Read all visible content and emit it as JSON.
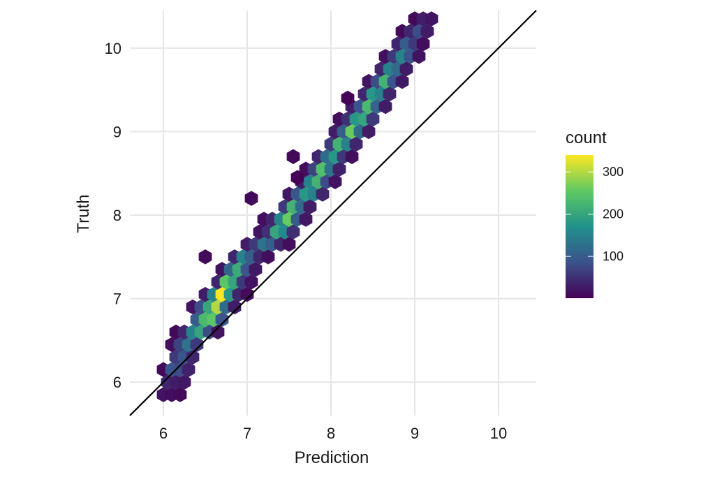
{
  "chart_data": {
    "type": "hexbin",
    "xlabel": "Prediction",
    "ylabel": "Truth",
    "xlim": [
      5.6,
      10.45
    ],
    "ylim": [
      5.6,
      10.45
    ],
    "x_ticks": [
      6,
      7,
      8,
      9,
      10
    ],
    "y_ticks": [
      6,
      7,
      8,
      9,
      10
    ],
    "grid": true,
    "reference_line": {
      "slope": 1,
      "intercept": 0,
      "color": "#000000"
    },
    "legend": {
      "title": "count",
      "placement": "right",
      "ticks": [
        100,
        200,
        300
      ],
      "range": [
        1,
        340
      ],
      "colormap": "viridis",
      "colors": [
        "#440154",
        "#3b528b",
        "#21918c",
        "#5ec962",
        "#fde725"
      ]
    },
    "bins": [
      [
        6.0,
        5.85,
        20
      ],
      [
        6.1,
        5.85,
        15
      ],
      [
        6.2,
        5.85,
        10
      ],
      [
        6.05,
        6.0,
        40
      ],
      [
        6.15,
        6.0,
        30
      ],
      [
        6.25,
        6.0,
        25
      ],
      [
        6.0,
        6.15,
        10
      ],
      [
        6.1,
        6.15,
        90
      ],
      [
        6.2,
        6.15,
        80
      ],
      [
        6.3,
        6.15,
        35
      ],
      [
        6.15,
        6.3,
        60
      ],
      [
        6.25,
        6.3,
        90
      ],
      [
        6.35,
        6.3,
        40
      ],
      [
        6.1,
        6.45,
        15
      ],
      [
        6.2,
        6.45,
        70
      ],
      [
        6.3,
        6.45,
        130
      ],
      [
        6.4,
        6.45,
        60
      ],
      [
        6.15,
        6.6,
        10
      ],
      [
        6.25,
        6.6,
        40
      ],
      [
        6.35,
        6.6,
        150
      ],
      [
        6.45,
        6.6,
        200
      ],
      [
        6.55,
        6.6,
        80
      ],
      [
        6.65,
        6.6,
        20
      ],
      [
        6.4,
        6.75,
        100
      ],
      [
        6.5,
        6.75,
        230
      ],
      [
        6.6,
        6.75,
        250
      ],
      [
        6.7,
        6.75,
        90
      ],
      [
        6.35,
        6.9,
        20
      ],
      [
        6.45,
        6.9,
        80
      ],
      [
        6.55,
        6.9,
        200
      ],
      [
        6.65,
        6.9,
        300
      ],
      [
        6.75,
        6.9,
        120
      ],
      [
        6.85,
        6.9,
        30
      ],
      [
        6.5,
        7.05,
        30
      ],
      [
        6.6,
        7.05,
        150
      ],
      [
        6.7,
        7.05,
        340
      ],
      [
        6.8,
        7.05,
        180
      ],
      [
        6.9,
        7.05,
        40
      ],
      [
        7.0,
        7.05,
        10
      ],
      [
        6.65,
        7.2,
        40
      ],
      [
        6.75,
        7.2,
        250
      ],
      [
        6.85,
        7.2,
        200
      ],
      [
        6.95,
        7.2,
        60
      ],
      [
        7.05,
        7.2,
        20
      ],
      [
        6.7,
        7.35,
        20
      ],
      [
        6.8,
        7.35,
        110
      ],
      [
        6.9,
        7.35,
        210
      ],
      [
        7.0,
        7.35,
        90
      ],
      [
        7.1,
        7.35,
        25
      ],
      [
        6.85,
        7.5,
        40
      ],
      [
        6.95,
        7.5,
        150
      ],
      [
        7.05,
        7.5,
        100
      ],
      [
        7.15,
        7.5,
        40
      ],
      [
        7.25,
        7.5,
        15
      ],
      [
        7.0,
        7.65,
        30
      ],
      [
        7.1,
        7.65,
        60
      ],
      [
        7.2,
        7.65,
        130
      ],
      [
        7.3,
        7.65,
        100
      ],
      [
        7.4,
        7.65,
        40
      ],
      [
        7.5,
        7.65,
        15
      ],
      [
        7.15,
        7.8,
        20
      ],
      [
        7.25,
        7.8,
        50
      ],
      [
        7.35,
        7.8,
        200
      ],
      [
        7.45,
        7.8,
        160
      ],
      [
        7.55,
        7.8,
        50
      ],
      [
        7.2,
        7.95,
        15
      ],
      [
        7.3,
        7.95,
        40
      ],
      [
        7.4,
        7.95,
        150
      ],
      [
        7.5,
        7.95,
        260
      ],
      [
        7.6,
        7.95,
        100
      ],
      [
        7.7,
        7.95,
        25
      ],
      [
        7.45,
        8.1,
        60
      ],
      [
        7.55,
        8.1,
        220
      ],
      [
        7.65,
        8.1,
        120
      ],
      [
        7.75,
        8.1,
        30
      ],
      [
        7.5,
        8.25,
        25
      ],
      [
        7.6,
        8.25,
        90
      ],
      [
        7.7,
        8.25,
        180
      ],
      [
        7.8,
        8.25,
        150
      ],
      [
        7.9,
        8.25,
        40
      ],
      [
        7.65,
        8.4,
        30
      ],
      [
        7.75,
        8.4,
        150
      ],
      [
        7.85,
        8.4,
        220
      ],
      [
        7.95,
        8.4,
        80
      ],
      [
        8.05,
        8.4,
        20
      ],
      [
        7.7,
        8.55,
        15
      ],
      [
        7.8,
        8.55,
        70
      ],
      [
        7.9,
        8.55,
        240
      ],
      [
        8.0,
        8.55,
        130
      ],
      [
        8.1,
        8.55,
        35
      ],
      [
        7.55,
        8.7,
        10
      ],
      [
        7.85,
        8.7,
        40
      ],
      [
        7.95,
        8.7,
        120
      ],
      [
        8.05,
        8.7,
        180
      ],
      [
        8.15,
        8.7,
        60
      ],
      [
        8.25,
        8.7,
        15
      ],
      [
        8.0,
        8.85,
        60
      ],
      [
        8.1,
        8.85,
        220
      ],
      [
        8.2,
        8.85,
        150
      ],
      [
        8.3,
        8.85,
        40
      ],
      [
        8.05,
        9.0,
        30
      ],
      [
        8.15,
        9.0,
        100
      ],
      [
        8.25,
        9.0,
        260
      ],
      [
        8.35,
        9.0,
        120
      ],
      [
        8.45,
        9.0,
        30
      ],
      [
        8.1,
        9.15,
        15
      ],
      [
        8.2,
        9.15,
        50
      ],
      [
        8.3,
        9.15,
        180
      ],
      [
        8.4,
        9.15,
        200
      ],
      [
        8.5,
        9.15,
        60
      ],
      [
        8.25,
        9.3,
        30
      ],
      [
        8.35,
        9.3,
        90
      ],
      [
        8.45,
        9.3,
        230
      ],
      [
        8.55,
        9.3,
        110
      ],
      [
        8.65,
        9.3,
        30
      ],
      [
        8.4,
        9.45,
        40
      ],
      [
        8.5,
        9.45,
        180
      ],
      [
        8.6,
        9.45,
        150
      ],
      [
        8.7,
        9.45,
        40
      ],
      [
        8.45,
        9.6,
        20
      ],
      [
        8.55,
        9.6,
        80
      ],
      [
        8.65,
        9.6,
        220
      ],
      [
        8.75,
        9.6,
        90
      ],
      [
        8.85,
        9.6,
        25
      ],
      [
        8.6,
        9.75,
        40
      ],
      [
        8.7,
        9.75,
        150
      ],
      [
        8.8,
        9.75,
        120
      ],
      [
        8.9,
        9.75,
        30
      ],
      [
        8.65,
        9.9,
        15
      ],
      [
        8.75,
        9.9,
        60
      ],
      [
        8.85,
        9.9,
        150
      ],
      [
        8.95,
        9.9,
        90
      ],
      [
        9.05,
        9.9,
        20
      ],
      [
        8.8,
        10.05,
        40
      ],
      [
        8.9,
        10.05,
        100
      ],
      [
        9.0,
        10.05,
        60
      ],
      [
        9.1,
        10.05,
        15
      ],
      [
        8.85,
        10.2,
        10
      ],
      [
        8.95,
        10.2,
        40
      ],
      [
        9.05,
        10.2,
        80
      ],
      [
        9.15,
        10.2,
        30
      ],
      [
        9.0,
        10.35,
        10
      ],
      [
        9.1,
        10.35,
        30
      ],
      [
        9.2,
        10.35,
        20
      ],
      [
        7.6,
        8.45,
        5
      ],
      [
        8.2,
        9.4,
        5
      ],
      [
        6.5,
        7.5,
        10
      ],
      [
        7.05,
        8.2,
        8
      ]
    ]
  }
}
